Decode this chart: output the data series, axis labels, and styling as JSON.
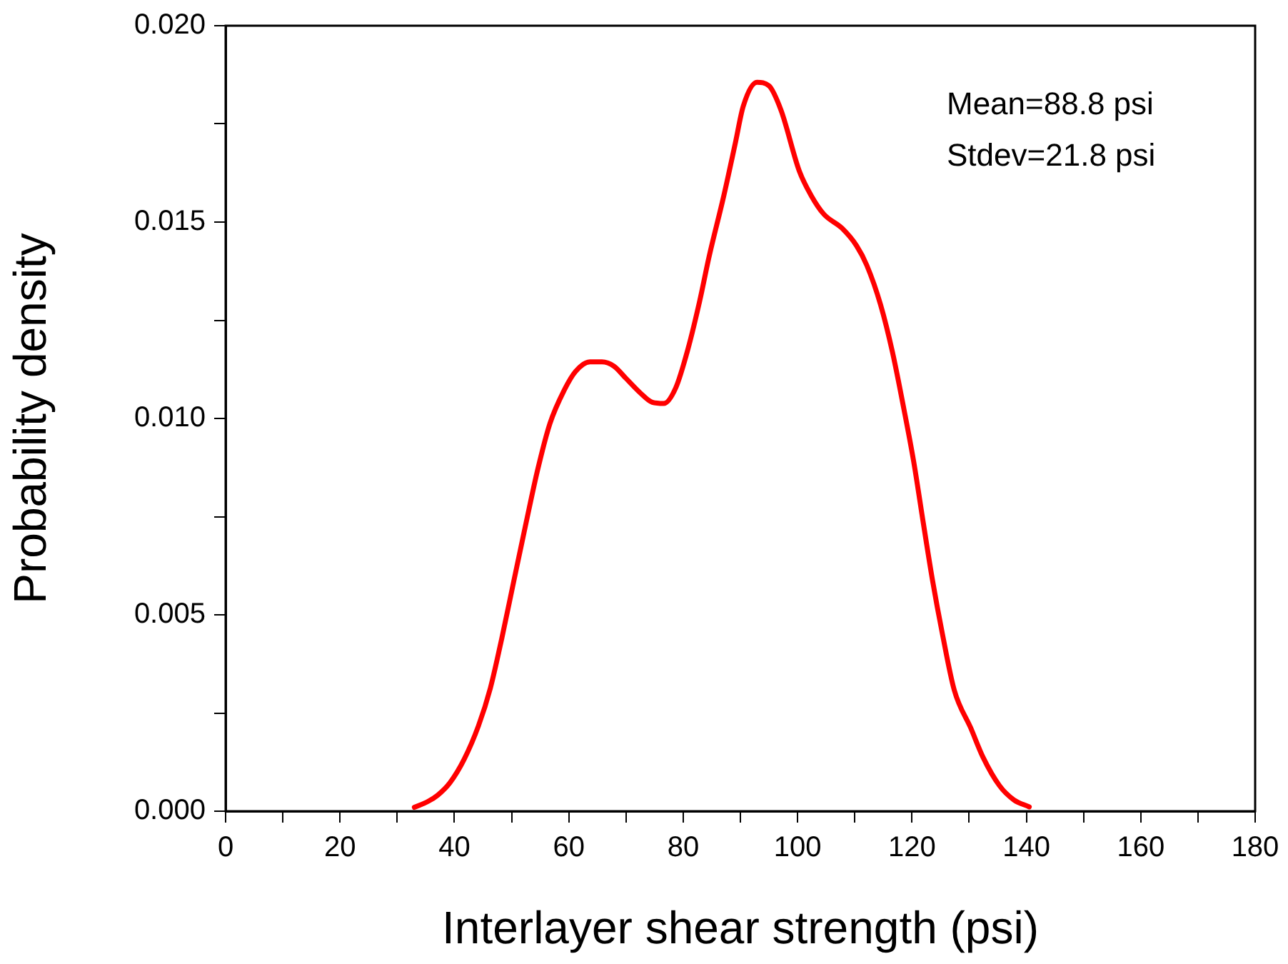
{
  "chart_data": {
    "type": "line",
    "xlabel": "Interlayer shear strength (psi)",
    "ylabel": "Probability density",
    "xlim": [
      0,
      180
    ],
    "ylim": [
      0,
      0.02
    ],
    "xticks": [
      0,
      {
        "value": 10,
        "label": null
      },
      20,
      {
        "value": 30,
        "label": null
      },
      40,
      {
        "value": 50,
        "label": null
      },
      60,
      {
        "value": 70,
        "label": null
      },
      80,
      {
        "value": 90,
        "label": null
      },
      100,
      {
        "value": 110,
        "label": null
      },
      120,
      {
        "value": 130,
        "label": null
      },
      140,
      {
        "value": 150,
        "label": null
      },
      160,
      {
        "value": 170,
        "label": null
      },
      180
    ],
    "yticks": [
      {
        "value": 0,
        "label": "0.000"
      },
      {
        "value": 0.0025,
        "label": null
      },
      {
        "value": 0.005,
        "label": "0.005"
      },
      {
        "value": 0.0075,
        "label": null
      },
      {
        "value": 0.01,
        "label": "0.010"
      },
      {
        "value": 0.0125,
        "label": null
      },
      {
        "value": 0.015,
        "label": "0.015"
      },
      {
        "value": 0.0175,
        "label": null
      },
      {
        "value": 0.02,
        "label": "0.020"
      }
    ],
    "grid": false,
    "legend": false,
    "marker": "none",
    "line_style": "solid",
    "annotations": [
      "Mean=88.8 psi",
      "Stdev=21.8 psi"
    ],
    "series": [
      {
        "color": "#ff0000",
        "x": [
          33,
          35.4,
          37.1,
          39.2,
          41.7,
          44.2,
          46.3,
          48.3,
          50.4,
          52.5,
          54.6,
          56.7,
          59.2,
          61.2,
          63.7,
          65.8,
          67.9,
          70,
          72.5,
          74.6,
          76.6,
          78.7,
          80.8,
          82.9,
          84.5,
          87.1,
          89.1,
          90.5,
          92.9,
          95,
          97.1,
          100.3,
          102.4,
          104.6,
          107.8,
          110.3,
          112.1,
          114.5,
          116.6,
          118.6,
          120.3,
          122,
          123.6,
          125.3,
          127.4,
          130.3,
          132.4,
          135.3,
          137.8,
          140.5
        ],
        "values": [
          0.0001,
          0.00025,
          0.00041,
          0.00072,
          0.00132,
          0.00217,
          0.00314,
          0.00441,
          0.00587,
          0.00732,
          0.00872,
          0.00987,
          0.01072,
          0.0112,
          0.01144,
          0.01144,
          0.01133,
          0.01102,
          0.01065,
          0.01041,
          0.01038,
          0.01078,
          0.01175,
          0.013,
          0.0141,
          0.01567,
          0.017,
          0.01795,
          0.01856,
          0.01847,
          0.01785,
          0.0163,
          0.01567,
          0.0152,
          0.01484,
          0.0144,
          0.0139,
          0.0129,
          0.01168,
          0.01023,
          0.0089,
          0.00732,
          0.00587,
          0.00453,
          0.00308,
          0.00211,
          0.00138,
          0.00065,
          0.00029,
          0.00011
        ]
      }
    ]
  }
}
